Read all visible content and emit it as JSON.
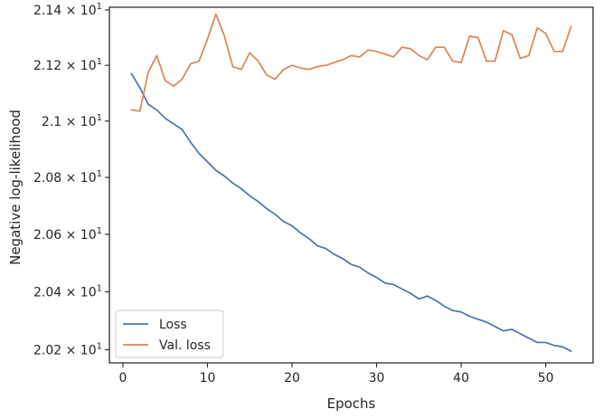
{
  "chart_data": {
    "type": "line",
    "title": "",
    "xlabel": "Epochs",
    "ylabel": "Negative log-likelihood",
    "y_scale": "log",
    "xlim": [
      -1.6,
      55.6
    ],
    "ylim": [
      20.155,
      21.41
    ],
    "x_ticks": [
      0,
      10,
      20,
      30,
      40,
      50
    ],
    "y_ticks": [
      {
        "value": 20.2,
        "mantissa": "2.02",
        "base": "10",
        "exponent": "1"
      },
      {
        "value": 20.4,
        "mantissa": "2.04",
        "base": "10",
        "exponent": "1"
      },
      {
        "value": 20.6,
        "mantissa": "2.06",
        "base": "10",
        "exponent": "1"
      },
      {
        "value": 20.8,
        "mantissa": "2.08",
        "base": "10",
        "exponent": "1"
      },
      {
        "value": 21.0,
        "mantissa": "2.1",
        "base": "10",
        "exponent": "1"
      },
      {
        "value": 21.2,
        "mantissa": "2.12",
        "base": "10",
        "exponent": "1"
      },
      {
        "value": 21.4,
        "mantissa": "2.14",
        "base": "10",
        "exponent": "1"
      }
    ],
    "grid": false,
    "legend_position": "lower-left",
    "x": [
      1,
      2,
      3,
      4,
      5,
      6,
      7,
      8,
      9,
      10,
      11,
      12,
      13,
      14,
      15,
      16,
      17,
      18,
      19,
      20,
      21,
      22,
      23,
      24,
      25,
      26,
      27,
      28,
      29,
      30,
      31,
      32,
      33,
      34,
      35,
      36,
      37,
      38,
      39,
      40,
      41,
      42,
      43,
      44,
      45,
      46,
      47,
      48,
      49,
      50,
      51,
      52,
      53
    ],
    "series": [
      {
        "name": "Loss",
        "color": "#4c72b0",
        "values": [
          21.17,
          21.12,
          21.06,
          21.04,
          21.01,
          20.99,
          20.97,
          20.925,
          20.885,
          20.855,
          20.825,
          20.805,
          20.78,
          20.76,
          20.735,
          20.715,
          20.69,
          20.67,
          20.645,
          20.63,
          20.605,
          20.585,
          20.56,
          20.55,
          20.53,
          20.515,
          20.495,
          20.485,
          20.465,
          20.45,
          20.43,
          20.425,
          20.41,
          20.395,
          20.375,
          20.385,
          20.37,
          20.35,
          20.335,
          20.33,
          20.315,
          20.305,
          20.295,
          20.28,
          20.265,
          20.27,
          20.255,
          20.24,
          20.225,
          20.225,
          20.215,
          20.21,
          20.195
        ]
      },
      {
        "name": "Val. loss",
        "color": "#dd8452",
        "values": [
          21.04,
          21.035,
          21.175,
          21.235,
          21.145,
          21.125,
          21.15,
          21.205,
          21.215,
          21.295,
          21.385,
          21.305,
          21.195,
          21.185,
          21.245,
          21.215,
          21.165,
          21.15,
          21.185,
          21.2,
          21.19,
          21.185,
          21.195,
          21.2,
          21.21,
          21.22,
          21.235,
          21.23,
          21.255,
          21.25,
          21.24,
          21.23,
          21.265,
          21.26,
          21.235,
          21.22,
          21.265,
          21.265,
          21.215,
          21.21,
          21.305,
          21.3,
          21.215,
          21.215,
          21.325,
          21.31,
          21.225,
          21.235,
          21.335,
          21.315,
          21.25,
          21.25,
          21.34
        ]
      }
    ]
  }
}
